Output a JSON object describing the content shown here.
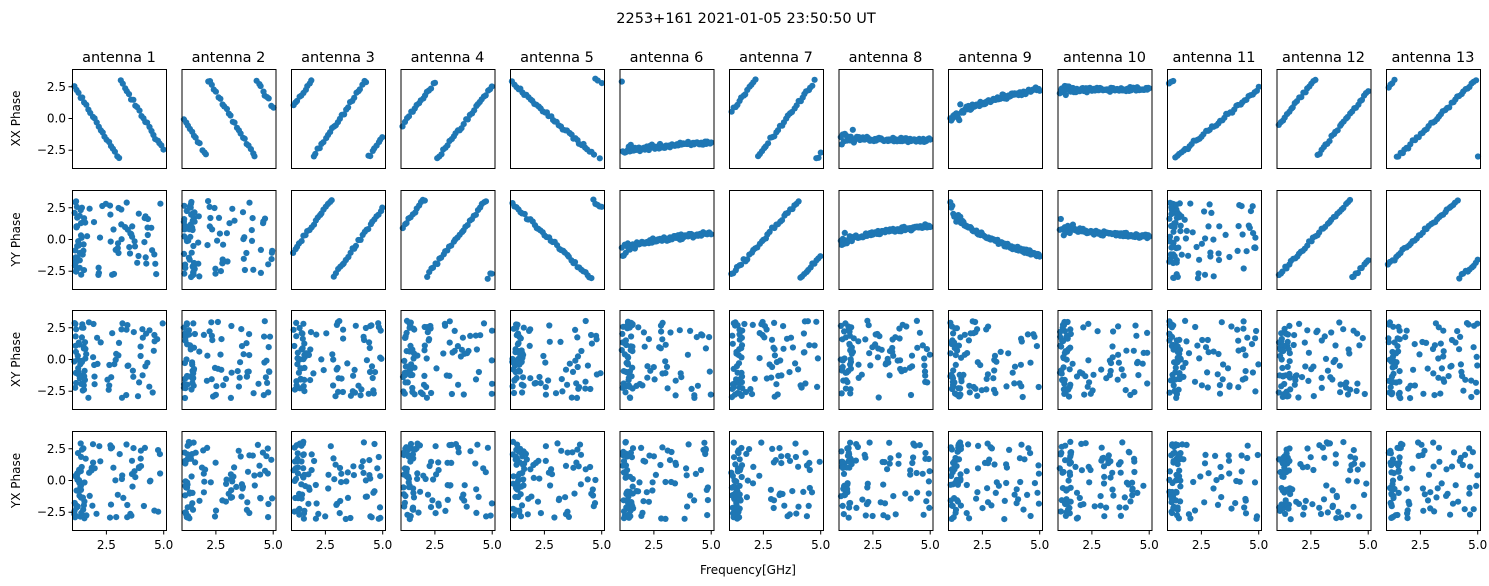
{
  "figure": {
    "suptitle": "2253+161 2021-01-05 23:50:50 UT",
    "xlabel": "Frequency[GHz]",
    "marker_color": "#1f77b4"
  },
  "chart_data": {
    "type": "scatter",
    "layout": "4 rows x 13 columns of small-multiple scatter panels",
    "columns": [
      "antenna 1",
      "antenna 2",
      "antenna 3",
      "antenna 4",
      "antenna 5",
      "antenna 6",
      "antenna 7",
      "antenna 8",
      "antenna 9",
      "antenna 10",
      "antenna 11",
      "antenna 12",
      "antenna 13"
    ],
    "rows": [
      "XX Phase",
      "YY Phase",
      "XY Phase",
      "YX Phase"
    ],
    "xlabel": "Frequency[GHz]",
    "xlim": [
      1.0,
      5.1
    ],
    "ylim": [
      -3.9,
      3.9
    ],
    "xticks": [
      2.5,
      5.0
    ],
    "xtick_labels": [
      "2.5",
      "5.0"
    ],
    "yticks": [
      2.5,
      0.0,
      -2.5
    ],
    "ytick_labels": [
      "2.5",
      "0.0",
      "−2.5"
    ],
    "grid": false,
    "legend": "none",
    "color": "#1f77b4",
    "panels": [
      [
        {
          "kind": "wrap",
          "c0": 2.5,
          "r": -2.9,
          "n": 45
        },
        {
          "kind": "random",
          "n": 90
        },
        {
          "kind": "random",
          "n": 90
        },
        {
          "kind": "random",
          "n": 90
        }
      ],
      [
        {
          "kind": "wrap",
          "c0": 0.0,
          "r": -3.0,
          "n": 45
        },
        {
          "kind": "random",
          "n": 90
        },
        {
          "kind": "random",
          "n": 90
        },
        {
          "kind": "random",
          "n": 90
        }
      ],
      [
        {
          "kind": "wrap",
          "c0": 1.0,
          "r": 2.6,
          "n": 45
        },
        {
          "kind": "wrap",
          "c0": -1.0,
          "r": 2.5,
          "n": 45
        },
        {
          "kind": "random",
          "n": 90
        },
        {
          "kind": "random",
          "n": 90
        }
      ],
      [
        {
          "kind": "wrap",
          "c0": -0.5,
          "r": 2.4,
          "n": 45
        },
        {
          "kind": "wrap",
          "c0": 1.0,
          "r": 2.3,
          "n": 45
        },
        {
          "kind": "random",
          "n": 90
        },
        {
          "kind": "random",
          "n": 90
        }
      ],
      [
        {
          "kind": "wrap",
          "c0": 2.8,
          "r": -1.6,
          "n": 45
        },
        {
          "kind": "wrap",
          "c0": 2.8,
          "r": -1.7,
          "n": 45
        },
        {
          "kind": "random",
          "n": 90
        },
        {
          "kind": "random",
          "n": 90
        }
      ],
      [
        {
          "kind": "flat",
          "b0": -2.8,
          "b1": -1.9,
          "n": 90
        },
        {
          "kind": "flat",
          "b0": -1.0,
          "b1": 0.5,
          "n": 90
        },
        {
          "kind": "random",
          "n": 90
        },
        {
          "kind": "random",
          "n": 90
        }
      ],
      [
        {
          "kind": "wrap",
          "c0": 0.5,
          "r": 2.4,
          "n": 45
        },
        {
          "kind": "wrap",
          "c0": -2.8,
          "r": 2.0,
          "n": 45
        },
        {
          "kind": "random",
          "n": 90
        },
        {
          "kind": "random",
          "n": 90
        }
      ],
      [
        {
          "kind": "flat",
          "b0": -1.5,
          "b1": -1.7,
          "n": 90
        },
        {
          "kind": "flat",
          "b0": -0.5,
          "b1": 1.1,
          "n": 90
        },
        {
          "kind": "random",
          "n": 90
        },
        {
          "kind": "random",
          "n": 90
        }
      ],
      [
        {
          "kind": "flat",
          "b0": -0.4,
          "b1": 2.3,
          "n": 90
        },
        {
          "kind": "flat",
          "b0": 2.8,
          "b1": -1.3,
          "n": 90
        },
        {
          "kind": "random",
          "n": 90
        },
        {
          "kind": "random",
          "n": 90
        }
      ],
      [
        {
          "kind": "flat",
          "b0": 2.2,
          "b1": 2.3,
          "n": 90
        },
        {
          "kind": "flat",
          "b0": 1.2,
          "b1": 0.2,
          "n": 90
        },
        {
          "kind": "random",
          "n": 90
        },
        {
          "kind": "random",
          "n": 90
        }
      ],
      [
        {
          "kind": "wrap",
          "c0": 2.8,
          "r": 1.5,
          "n": 45
        },
        {
          "kind": "random",
          "n": 90
        },
        {
          "kind": "random",
          "n": 90
        },
        {
          "kind": "random",
          "n": 90
        }
      ],
      [
        {
          "kind": "wrap",
          "c0": -0.5,
          "r": 2.3,
          "n": 45
        },
        {
          "kind": "wrap",
          "c0": -2.8,
          "r": 1.9,
          "n": 45
        },
        {
          "kind": "random",
          "n": 90
        },
        {
          "kind": "random",
          "n": 90
        }
      ],
      [
        {
          "kind": "wrap",
          "c0": 2.5,
          "r": 1.8,
          "n": 45
        },
        {
          "kind": "wrap",
          "c0": -2.0,
          "r": 1.7,
          "n": 45
        },
        {
          "kind": "random",
          "n": 90
        },
        {
          "kind": "random",
          "n": 90
        }
      ]
    ]
  }
}
